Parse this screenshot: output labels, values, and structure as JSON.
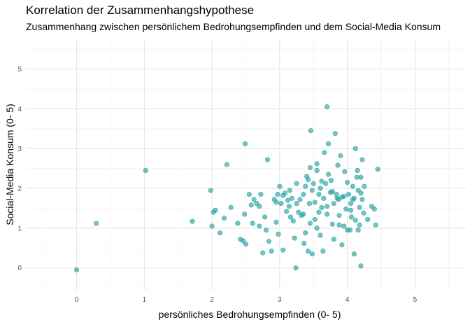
{
  "header": {
    "title": "Korrelation der Zusammenhangshypothese",
    "subtitle": "Zusammenhang zwischen persönlichem Bedrohungsempfinden und dem Social-Media Konsum"
  },
  "chart_data": {
    "type": "scatter",
    "title": "Korrelation der Zusammenhangshypothese",
    "subtitle": "Zusammenhang zwischen persönlichem Bedrohungsempfinden und dem Social-Media Konsum",
    "xlabel": "persönliches Bedrohungsempfinden (0- 5)",
    "ylabel": "Social-Media Konsum (0- 5)",
    "xlim": [
      -0.75,
      5.75
    ],
    "ylim": [
      -0.55,
      5.75
    ],
    "x_ticks": [
      0,
      1,
      2,
      3,
      4,
      5
    ],
    "y_ticks": [
      0,
      1,
      2,
      3,
      4,
      5
    ],
    "grid": true,
    "point_color": "#1f9e9e",
    "points": [
      [
        0,
        -0.05
      ],
      [
        0.29,
        1.12
      ],
      [
        1.02,
        2.45
      ],
      [
        1.71,
        1.17
      ],
      [
        1.98,
        1.95
      ],
      [
        2.0,
        1.05
      ],
      [
        2.02,
        1.4
      ],
      [
        2.05,
        1.45
      ],
      [
        2.12,
        0.88
      ],
      [
        2.18,
        1.25
      ],
      [
        2.22,
        2.6
      ],
      [
        2.28,
        1.52
      ],
      [
        2.38,
        1.12
      ],
      [
        2.42,
        0.72
      ],
      [
        2.46,
        0.68
      ],
      [
        2.48,
        1.35
      ],
      [
        2.5,
        0.6
      ],
      [
        2.49,
        3.12
      ],
      [
        2.55,
        1.85
      ],
      [
        2.58,
        1.58
      ],
      [
        2.6,
        1.12
      ],
      [
        2.62,
        1.72
      ],
      [
        2.66,
        1.62
      ],
      [
        2.7,
        1.55
      ],
      [
        2.72,
        1.85
      ],
      [
        2.75,
        0.38
      ],
      [
        2.78,
        1.28
      ],
      [
        2.8,
        0.95
      ],
      [
        2.82,
        2.72
      ],
      [
        2.84,
        0.67
      ],
      [
        2.88,
        0.42
      ],
      [
        2.92,
        1.72
      ],
      [
        2.95,
        1.15
      ],
      [
        2.97,
        1.85
      ],
      [
        2.98,
        0.85
      ],
      [
        3.0,
        2.05
      ],
      [
        3.02,
        1.62
      ],
      [
        3.05,
        1.82
      ],
      [
        3.05,
        0.45
      ],
      [
        3.08,
        1.88
      ],
      [
        3.1,
        1.42
      ],
      [
        3.12,
        1.7
      ],
      [
        3.14,
        1.55
      ],
      [
        3.16,
        1.28
      ],
      [
        3.18,
        1.75
      ],
      [
        3.2,
        1.18
      ],
      [
        3.22,
        0.75
      ],
      [
        3.24,
        0.0
      ],
      [
        3.25,
        2.12
      ],
      [
        3.28,
        1.4
      ],
      [
        3.3,
        1.72
      ],
      [
        3.32,
        1.32
      ],
      [
        3.35,
        1.85
      ],
      [
        3.36,
        0.62
      ],
      [
        3.38,
        0.88
      ],
      [
        3.4,
        2.3
      ],
      [
        3.42,
        0.42
      ],
      [
        3.44,
        1.62
      ],
      [
        3.45,
        2.52
      ],
      [
        3.46,
        3.45
      ],
      [
        3.48,
        1.95
      ],
      [
        3.48,
        0.35
      ],
      [
        3.5,
        2.12
      ],
      [
        3.52,
        1.22
      ],
      [
        3.55,
        2.45
      ],
      [
        3.55,
        1.0
      ],
      [
        3.58,
        1.85
      ],
      [
        3.6,
        0.82
      ],
      [
        3.6,
        2.0
      ],
      [
        3.62,
        1.52
      ],
      [
        3.64,
        0.42
      ],
      [
        3.65,
        1.75
      ],
      [
        3.66,
        2.9
      ],
      [
        3.68,
        2.12
      ],
      [
        3.7,
        4.05
      ],
      [
        3.7,
        1.35
      ],
      [
        3.72,
        2.35
      ],
      [
        3.72,
        3.12
      ],
      [
        3.75,
        1.9
      ],
      [
        3.76,
        2.2
      ],
      [
        3.78,
        1.1
      ],
      [
        3.8,
        1.62
      ],
      [
        3.8,
        0.72
      ],
      [
        3.82,
        3.38
      ],
      [
        3.84,
        1.85
      ],
      [
        3.86,
        2.58
      ],
      [
        3.87,
        1.72
      ],
      [
        3.88,
        1.32
      ],
      [
        3.9,
        2.82
      ],
      [
        3.92,
        0.58
      ],
      [
        3.92,
        1.78
      ],
      [
        3.95,
        1.05
      ],
      [
        3.96,
        2.42
      ],
      [
        3.98,
        1.48
      ],
      [
        4.0,
        2.15
      ],
      [
        4.02,
        1.85
      ],
      [
        4.04,
        0.95
      ],
      [
        4.05,
        1.62
      ],
      [
        4.06,
        1.28
      ],
      [
        4.08,
        2.05
      ],
      [
        4.1,
        1.75
      ],
      [
        4.1,
        0.35
      ],
      [
        4.12,
        3.0
      ],
      [
        4.12,
        1.2
      ],
      [
        4.14,
        2.28
      ],
      [
        4.15,
        2.45
      ],
      [
        4.16,
        1.95
      ],
      [
        4.16,
        0.95
      ],
      [
        4.18,
        1.52
      ],
      [
        4.18,
        1.08
      ],
      [
        4.2,
        2.28
      ],
      [
        4.2,
        1.88
      ],
      [
        4.2,
        0.05
      ],
      [
        4.22,
        2.72
      ],
      [
        4.22,
        1.72
      ],
      [
        4.24,
        1.38
      ],
      [
        4.25,
        2.05
      ],
      [
        4.3,
        1.22
      ],
      [
        4.36,
        1.55
      ],
      [
        4.4,
        1.48
      ],
      [
        4.42,
        1.08
      ],
      [
        4.45,
        2.48
      ],
      [
        3.35,
        1.35
      ],
      [
        3.25,
        1.62
      ],
      [
        3.52,
        1.65
      ],
      [
        3.58,
        1.4
      ],
      [
        3.45,
        1.12
      ],
      [
        3.7,
        1.55
      ],
      [
        3.85,
        1.75
      ],
      [
        4.08,
        1.72
      ],
      [
        4.05,
        1.45
      ],
      [
        3.95,
        1.8
      ],
      [
        3.38,
        2.05
      ],
      [
        3.62,
        2.18
      ],
      [
        3.78,
        1.92
      ],
      [
        3.55,
        2.62
      ],
      [
        2.95,
        1.65
      ],
      [
        3.15,
        1.95
      ],
      [
        2.7,
        1.05
      ],
      [
        3.42,
        2.22
      ],
      [
        3.88,
        1.08
      ],
      [
        4.0,
        0.95
      ]
    ]
  }
}
